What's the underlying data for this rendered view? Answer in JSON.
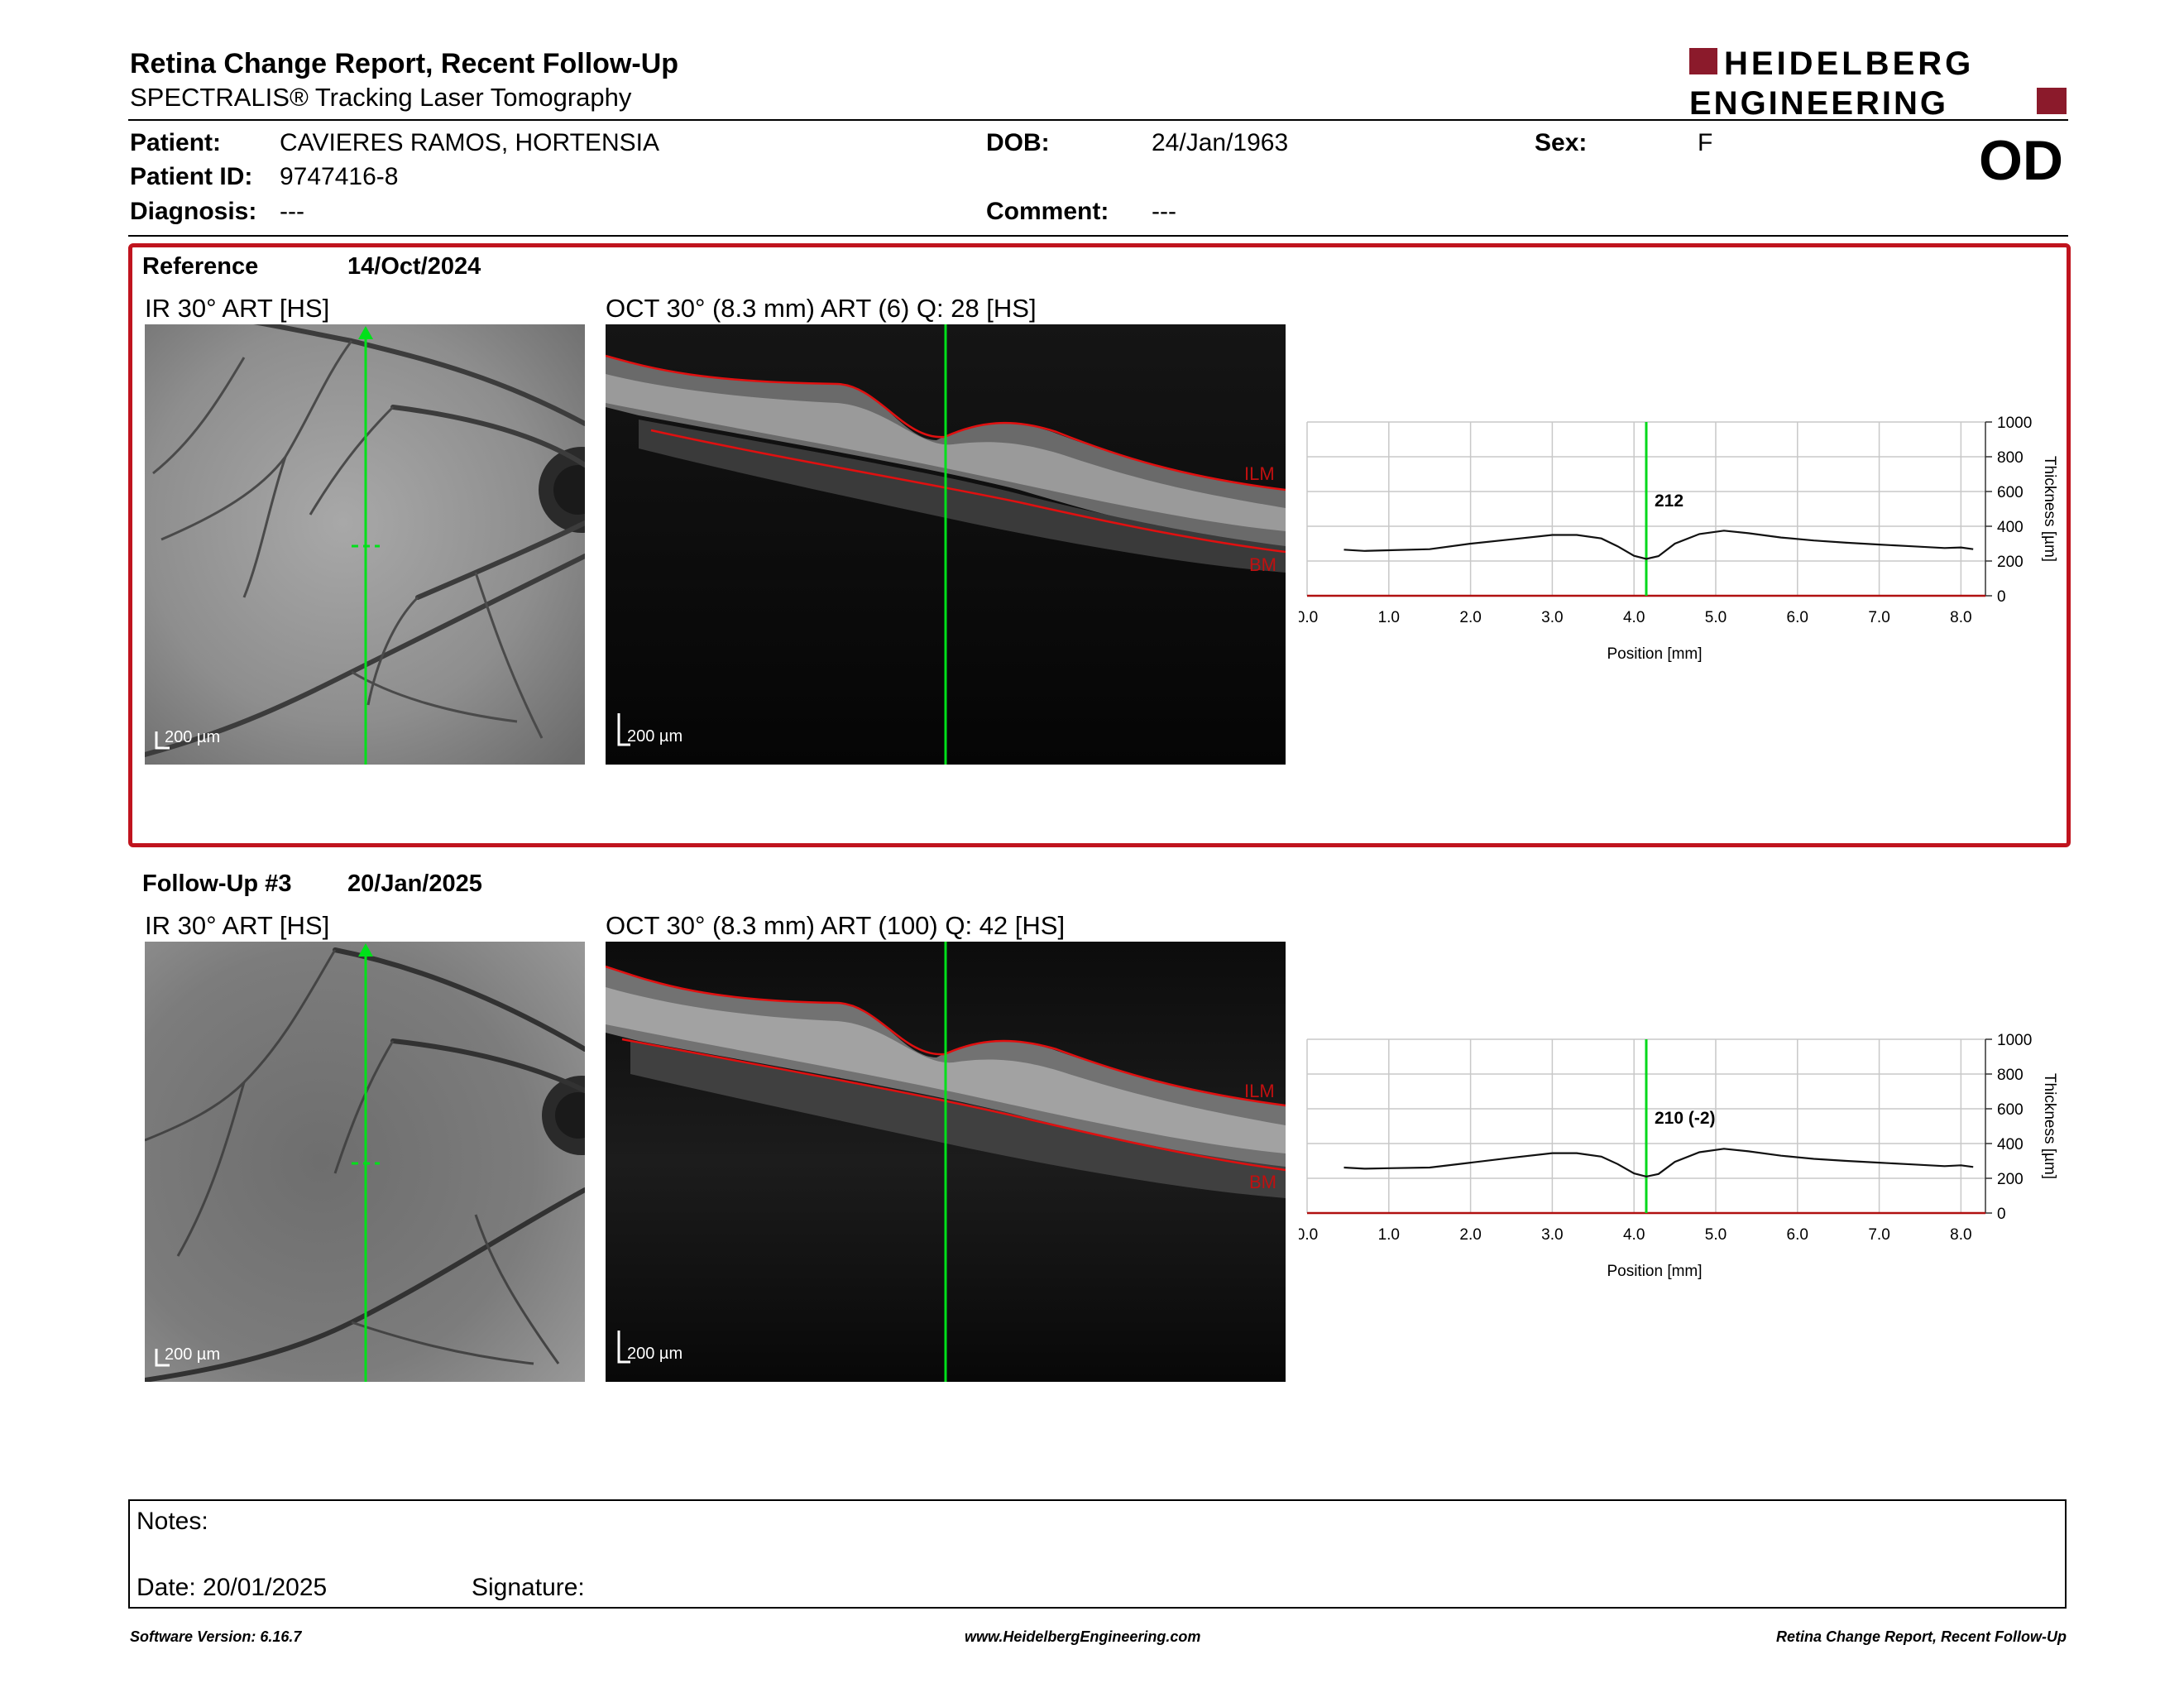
{
  "header": {
    "title": "Retina Change Report, Recent Follow-Up",
    "subtitle": "SPECTRALIS® Tracking Laser Tomography",
    "logo_top": "HEIDELBERG",
    "logo_bottom": "ENGINEERING",
    "brand_color": "#8b1a2b"
  },
  "patient": {
    "patient_label": "Patient:",
    "patient_value": "CAVIERES RAMOS, HORTENSIA",
    "id_label": "Patient ID:",
    "id_value": "9747416-8",
    "diagnosis_label": "Diagnosis:",
    "diagnosis_value": "---",
    "dob_label": "DOB:",
    "dob_value": "24/Jan/1963",
    "comment_label": "Comment:",
    "comment_value": "---",
    "sex_label": "Sex:",
    "sex_value": "F",
    "eye": "OD"
  },
  "reference": {
    "label": "Reference",
    "date": "14/Oct/2024",
    "ir_title": "IR 30° ART [HS]",
    "oct_title": "OCT 30° (8.3 mm) ART (6) Q: 28 [HS]",
    "scale_label": "200 µm",
    "ilm_label": "ILM",
    "bm_label": "BM",
    "highlight_color": "#c0141e"
  },
  "followup": {
    "label": "Follow-Up #3",
    "date": "20/Jan/2025",
    "ir_title": "IR 30° ART [HS]",
    "oct_title": "OCT 30° (8.3 mm) ART (100) Q: 42 [HS]",
    "scale_label": "200 µm",
    "ilm_label": "ILM",
    "bm_label": "BM"
  },
  "chart_data": [
    {
      "type": "line",
      "xlabel": "Position [mm]",
      "ylabel": "Thickness [µm]",
      "xlim": [
        0,
        8.3
      ],
      "ylim": [
        0,
        1000
      ],
      "xticks": [
        "0.0",
        "1.0",
        "2.0",
        "3.0",
        "4.0",
        "5.0",
        "6.0",
        "7.0",
        "8.0"
      ],
      "yticks": [
        "0",
        "200",
        "400",
        "600",
        "800",
        "1000"
      ],
      "grid": true,
      "marker_x": 4.15,
      "marker_label": "212",
      "series": [
        {
          "x": [
            0.45,
            0.7,
            1.0,
            1.5,
            2.0,
            2.5,
            3.0,
            3.3,
            3.6,
            3.8,
            4.0,
            4.15,
            4.3,
            4.5,
            4.8,
            5.1,
            5.4,
            5.8,
            6.2,
            6.6,
            7.0,
            7.4,
            7.8,
            8.0,
            8.15
          ],
          "y": [
            265,
            258,
            262,
            268,
            300,
            325,
            350,
            350,
            330,
            285,
            230,
            212,
            228,
            300,
            355,
            375,
            360,
            335,
            318,
            305,
            295,
            285,
            275,
            278,
            268
          ]
        }
      ]
    },
    {
      "type": "line",
      "xlabel": "Position [mm]",
      "ylabel": "Thickness [µm]",
      "xlim": [
        0,
        8.3
      ],
      "ylim": [
        0,
        1000
      ],
      "xticks": [
        "0.0",
        "1.0",
        "2.0",
        "3.0",
        "4.0",
        "5.0",
        "6.0",
        "7.0",
        "8.0"
      ],
      "yticks": [
        "0",
        "200",
        "400",
        "600",
        "800",
        "1000"
      ],
      "grid": true,
      "marker_x": 4.15,
      "marker_label": "210 (-2)",
      "series": [
        {
          "x": [
            0.45,
            0.7,
            1.0,
            1.5,
            2.0,
            2.5,
            3.0,
            3.3,
            3.6,
            3.8,
            4.0,
            4.15,
            4.3,
            4.5,
            4.8,
            5.1,
            5.4,
            5.8,
            6.2,
            6.6,
            7.0,
            7.4,
            7.8,
            8.0,
            8.15
          ],
          "y": [
            262,
            255,
            258,
            262,
            290,
            318,
            345,
            345,
            325,
            282,
            228,
            210,
            225,
            295,
            350,
            370,
            355,
            330,
            312,
            300,
            290,
            280,
            270,
            275,
            265
          ]
        }
      ]
    }
  ],
  "notes": {
    "notes_label": "Notes:",
    "date_label": "Date: 20/01/2025",
    "signature_label": "Signature:"
  },
  "footer": {
    "left": "Software Version: 6.16.7",
    "center": "www.HeidelbergEngineering.com",
    "right": "Retina Change Report, Recent Follow-Up"
  }
}
